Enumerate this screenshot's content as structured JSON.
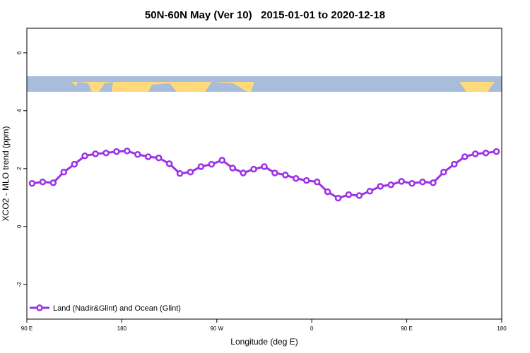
{
  "chart_data": {
    "type": "line",
    "title": "50N-60N May (Ver 10)   2015-01-01 to 2020-12-18",
    "x_label": "Longitude (deg E)",
    "y_label": "XCO2 - MLO trend (ppm)",
    "x": [
      95,
      105,
      115,
      125,
      135,
      145,
      155,
      165,
      175,
      185,
      195,
      205,
      215,
      225,
      235,
      245,
      255,
      265,
      275,
      285,
      295,
      305,
      315,
      325,
      335,
      345,
      355,
      365,
      375,
      385,
      395,
      405,
      415,
      425,
      435,
      445,
      455,
      465,
      475,
      485,
      495,
      505,
      515,
      525,
      535
    ],
    "series": [
      {
        "name": "Land (Nadir&Glint) and Ocean (Glint)",
        "color": "#9b30e6",
        "values": [
          1.49,
          1.54,
          1.51,
          1.88,
          2.15,
          2.44,
          2.51,
          2.54,
          2.59,
          2.61,
          2.49,
          2.41,
          2.37,
          2.17,
          1.83,
          1.88,
          2.07,
          2.15,
          2.29,
          2.02,
          1.85,
          1.98,
          2.07,
          1.85,
          1.78,
          1.66,
          1.59,
          1.54,
          1.2,
          0.98,
          1.1,
          1.07,
          1.22,
          1.39,
          1.44,
          1.56,
          1.49,
          1.54,
          1.51,
          1.88,
          2.15,
          2.41,
          2.51,
          2.54,
          2.59
        ]
      }
    ],
    "xlim": [
      90,
      540
    ],
    "xticks": [
      {
        "value": 90,
        "label": "90 E"
      },
      180,
      {
        "value": 270,
        "label": "90 W"
      },
      {
        "value": 360,
        "label": "0"
      },
      {
        "value": 450,
        "label": "90 E"
      },
      {
        "value": 540,
        "label": "180"
      }
    ],
    "ylim": [
      -3.2,
      6.85
    ],
    "yticks": [
      -2,
      0,
      2,
      4,
      6
    ],
    "legend": "bottom-left"
  }
}
